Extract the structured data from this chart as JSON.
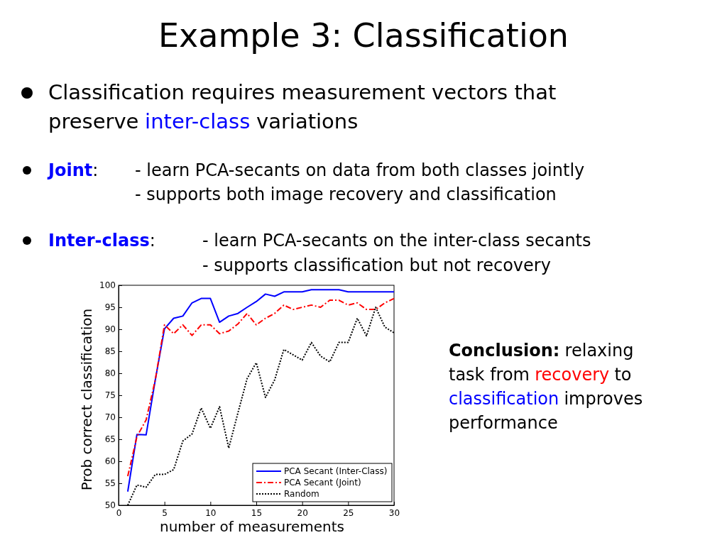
{
  "chart_data": {
    "type": "line",
    "title": "Example 3: Classification",
    "xlabel": "number of measurements",
    "ylabel": "Prob correct classification",
    "x": [
      1,
      2,
      3,
      4,
      5,
      6,
      7,
      8,
      9,
      10,
      11,
      12,
      13,
      14,
      15,
      16,
      17,
      18,
      19,
      20,
      21,
      22,
      23,
      24,
      25,
      26,
      27,
      28,
      29,
      30
    ],
    "series": [
      {
        "name": "PCA Secant (Inter-Class)",
        "color": "#0000ff",
        "line_style": "solid",
        "values": [
          53.1,
          66.1,
          66,
          78.5,
          90.1,
          92.5,
          93,
          96,
          97,
          97,
          91.6,
          93,
          93.6,
          95,
          96.3,
          98,
          97.5,
          98.5,
          98.5,
          98.5,
          99,
          99,
          99,
          99,
          98.5,
          98.5,
          98.5,
          98.5,
          98.5,
          98.5
        ]
      },
      {
        "name": "PCA Secant (Joint)",
        "color": "#ff0000",
        "line_style": "dashdot",
        "values": [
          56.6,
          65.6,
          69.4,
          78.5,
          91,
          89,
          91,
          88.6,
          91,
          91,
          89,
          89.6,
          91.2,
          93.6,
          91,
          92.5,
          93.6,
          95.5,
          94.5,
          95,
          95.5,
          95,
          96.6,
          96.6,
          95.5,
          96,
          94.5,
          94.5,
          96,
          97
        ]
      },
      {
        "name": "Random",
        "color": "#000000",
        "line_style": "dotted",
        "values": [
          50,
          54.6,
          54.1,
          57,
          57,
          58.1,
          64.6,
          66.2,
          72.1,
          67.5,
          72.4,
          63,
          71,
          78.8,
          82.4,
          74.5,
          78.5,
          85.4,
          84.2,
          83,
          87,
          83.9,
          82.6,
          87,
          87,
          92.5,
          88.5,
          95,
          90.5,
          89.2
        ]
      }
    ],
    "xlim": [
      0,
      30
    ],
    "xticks": [
      0,
      5,
      10,
      15,
      20,
      25,
      30
    ],
    "ylim": [
      50,
      100
    ],
    "yticks": [
      50,
      55,
      60,
      65,
      70,
      75,
      80,
      85,
      90,
      95,
      100
    ],
    "grid": false,
    "legend": "bottom right",
    "marker": "none",
    "annotations": [
      "Classification requires measurement vectors that",
      "preserve",
      "inter-class",
      "variations",
      "Joint",
      ":",
      "- learn PCA-secants on data from both classes jointly",
      "- supports both image recovery and classification",
      "Inter-class",
      ":",
      "- learn PCA-secants on the inter-class secants",
      "- supports classification but not recovery",
      "Conclusion:",
      "relaxing",
      "task from",
      "recovery",
      "to",
      "classification",
      "improves",
      "performance"
    ]
  }
}
